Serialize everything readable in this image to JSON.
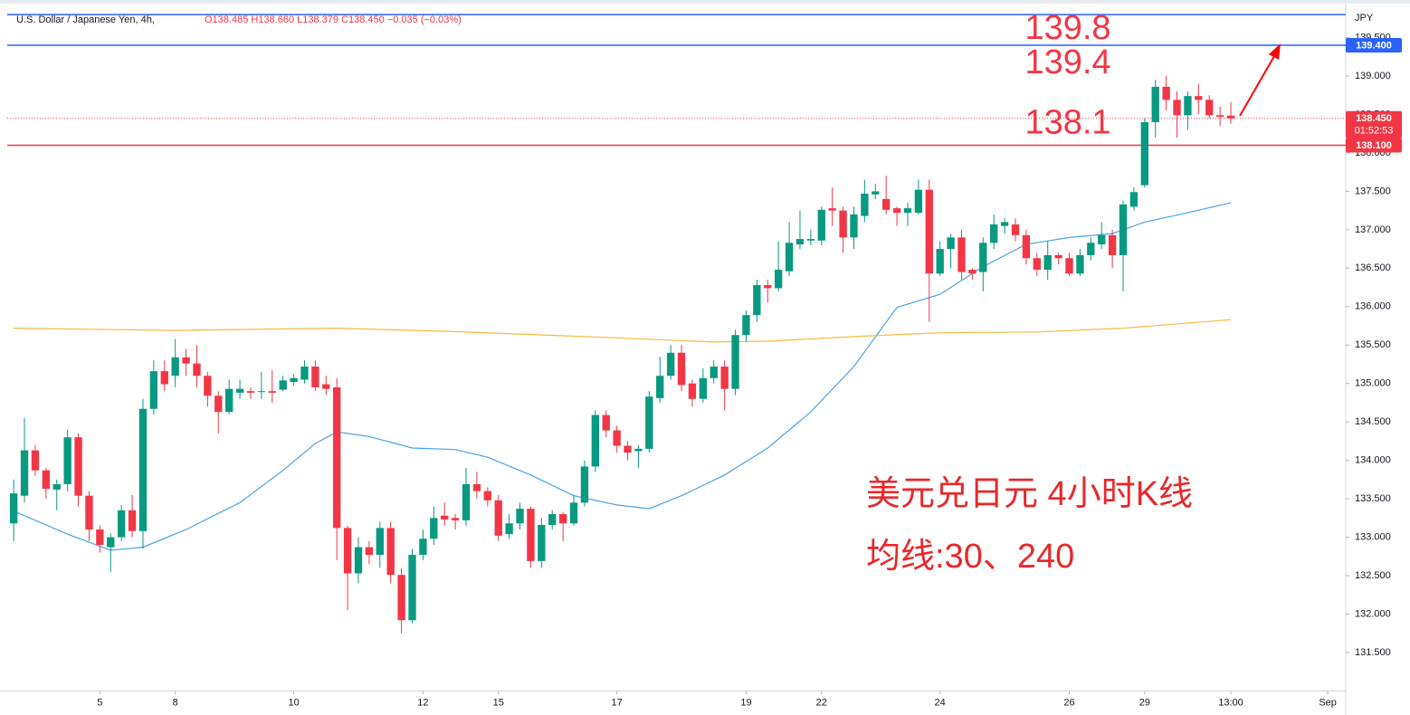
{
  "chart_data": {
    "type": "candlestick",
    "title": "U.S. Dollar / Japanese Yen, 4h,",
    "subtitle": "O138.485 H138.660 L138.379 C138.450 −0.035 (−0.03%)",
    "y_axis_label": "JPY",
    "up_color": "#089981",
    "down_color": "#f23645",
    "open": [
      133.18,
      133.54,
      134.13,
      133.87,
      133.62,
      133.69,
      134.3,
      133.54,
      133.1,
      132.87,
      133.0,
      133.35,
      133.08,
      134.67,
      135.16,
      135.1,
      135.34,
      135.26,
      135.1,
      134.84,
      134.63,
      134.88,
      134.9,
      134.89,
      134.9,
      134.92,
      135.02,
      135.05,
      135.22,
      134.99,
      134.95,
      133.12,
      132.53,
      132.87,
      132.77,
      133.12,
      132.51,
      131.92,
      132.77,
      132.98,
      133.28,
      133.25,
      133.22,
      133.69,
      133.6,
      133.48,
      133.04,
      133.18,
      133.37,
      132.69,
      133.16,
      133.3,
      133.18,
      133.45,
      133.92,
      134.59,
      134.39,
      134.19,
      134.12,
      134.15,
      134.81,
      135.1,
      135.4,
      135.0,
      134.8,
      135.07,
      135.22,
      134.93,
      135.63,
      135.89,
      136.28,
      136.24,
      136.46,
      136.81,
      136.86,
      136.86,
      137.28,
      137.25,
      136.9,
      137.18,
      137.46,
      137.4,
      137.28,
      137.22,
      137.22,
      137.52,
      136.43,
      136.75,
      136.9,
      136.48,
      136.45,
      136.83,
      137.05,
      137.07,
      136.93,
      136.63,
      136.48,
      136.67,
      136.63,
      136.43,
      136.67,
      136.81,
      136.93,
      136.67,
      137.3,
      137.58,
      138.4,
      138.86,
      138.69,
      138.49,
      138.74,
      138.69,
      138.49,
      138.485
    ],
    "high": [
      133.75,
      134.55,
      134.2,
      133.9,
      133.75,
      134.4,
      134.35,
      133.6,
      133.15,
      133.05,
      133.42,
      133.55,
      134.8,
      135.3,
      135.3,
      135.58,
      135.45,
      135.5,
      135.15,
      134.9,
      135.05,
      135.05,
      134.95,
      135.15,
      135.17,
      135.1,
      135.12,
      135.3,
      135.3,
      135.1,
      135.07,
      133.15,
      133.0,
      132.95,
      133.2,
      133.2,
      132.6,
      132.85,
      133.1,
      133.4,
      133.45,
      133.3,
      133.9,
      133.85,
      133.65,
      133.55,
      133.3,
      133.45,
      133.4,
      133.25,
      133.35,
      133.33,
      133.55,
      134.0,
      134.65,
      134.65,
      134.45,
      134.25,
      134.2,
      134.9,
      135.35,
      135.5,
      135.5,
      135.05,
      135.2,
      135.3,
      135.3,
      135.7,
      135.95,
      136.35,
      136.35,
      136.85,
      137.1,
      137.25,
      137.0,
      137.3,
      137.55,
      137.3,
      137.3,
      137.65,
      137.6,
      137.7,
      137.3,
      137.35,
      137.65,
      137.65,
      136.85,
      136.95,
      137.0,
      136.5,
      136.9,
      137.2,
      137.15,
      137.15,
      137.0,
      136.7,
      136.85,
      136.7,
      136.7,
      136.75,
      136.9,
      137.1,
      137.0,
      137.38,
      137.55,
      138.45,
      138.95,
      139.0,
      138.8,
      138.8,
      138.9,
      138.75,
      138.6,
      138.66
    ],
    "low": [
      132.95,
      133.45,
      133.8,
      133.5,
      133.35,
      133.6,
      133.4,
      132.95,
      132.8,
      132.55,
      132.95,
      133.0,
      132.85,
      134.6,
      134.9,
      134.95,
      135.1,
      134.95,
      134.7,
      134.35,
      134.6,
      134.8,
      134.8,
      134.8,
      134.75,
      134.9,
      134.97,
      135.0,
      134.9,
      134.85,
      132.7,
      132.05,
      132.4,
      132.65,
      132.6,
      132.4,
      131.75,
      131.88,
      132.7,
      132.9,
      133.15,
      133.1,
      133.15,
      133.5,
      133.4,
      132.95,
      132.98,
      133.1,
      132.6,
      132.6,
      133.1,
      132.95,
      133.15,
      133.4,
      133.85,
      134.3,
      134.1,
      134.0,
      133.9,
      134.1,
      134.75,
      135.05,
      134.9,
      134.7,
      134.75,
      135.0,
      134.65,
      134.85,
      135.55,
      135.8,
      136.05,
      136.2,
      136.4,
      136.75,
      136.8,
      136.8,
      137.05,
      136.7,
      136.75,
      137.1,
      137.4,
      137.2,
      137.05,
      137.05,
      137.2,
      135.8,
      136.4,
      136.5,
      136.35,
      136.35,
      136.2,
      136.75,
      136.95,
      136.85,
      136.55,
      136.4,
      136.35,
      136.55,
      136.4,
      136.4,
      136.6,
      136.75,
      136.5,
      136.2,
      137.25,
      137.55,
      138.2,
      138.55,
      138.2,
      138.3,
      138.5,
      138.45,
      138.35,
      138.379
    ],
    "close": [
      133.57,
      134.13,
      133.87,
      133.63,
      133.69,
      134.3,
      133.54,
      133.1,
      132.9,
      133.0,
      133.35,
      133.08,
      134.67,
      135.16,
      134.99,
      135.34,
      135.26,
      135.1,
      134.84,
      134.63,
      134.93,
      134.93,
      134.88,
      134.9,
      134.88,
      135.04,
      135.07,
      135.22,
      134.95,
      134.93,
      133.12,
      132.53,
      132.87,
      132.77,
      133.12,
      132.51,
      131.92,
      132.77,
      132.98,
      133.25,
      133.23,
      133.22,
      133.69,
      133.6,
      133.48,
      133.02,
      133.18,
      133.37,
      132.69,
      133.16,
      133.3,
      133.18,
      133.45,
      133.92,
      134.59,
      134.39,
      134.19,
      134.1,
      134.15,
      134.83,
      135.1,
      135.4,
      134.98,
      134.8,
      135.07,
      135.22,
      134.93,
      135.63,
      135.89,
      136.28,
      136.24,
      136.48,
      136.83,
      136.88,
      136.88,
      137.26,
      137.25,
      136.9,
      137.2,
      137.47,
      137.5,
      137.26,
      137.22,
      137.28,
      137.52,
      136.43,
      136.75,
      136.9,
      136.45,
      136.43,
      136.83,
      137.07,
      137.1,
      136.93,
      136.63,
      136.48,
      136.67,
      136.63,
      136.43,
      136.67,
      136.83,
      136.93,
      136.67,
      137.33,
      137.49,
      138.4,
      138.86,
      138.69,
      138.49,
      138.74,
      138.69,
      138.49,
      138.47,
      138.45
    ],
    "moving_averages": [
      {
        "color": "#4aa3e6",
        "x": [
          0,
          5,
          9,
          12,
          16,
          21,
          25,
          28,
          30,
          33,
          37,
          41,
          44,
          48,
          52,
          56,
          59,
          62,
          66,
          70,
          74,
          78,
          82,
          86,
          90,
          94,
          98,
          102,
          105,
          108,
          113
        ],
        "values": [
          133.34,
          133.04,
          132.83,
          132.87,
          133.1,
          133.45,
          133.87,
          134.22,
          134.37,
          134.31,
          134.16,
          134.14,
          134.04,
          133.81,
          133.54,
          133.42,
          133.37,
          133.54,
          133.81,
          134.16,
          134.63,
          135.22,
          135.99,
          136.16,
          136.52,
          136.81,
          136.9,
          136.95,
          137.1,
          137.19,
          137.35
        ]
      },
      {
        "color": "#f5b942",
        "x": [
          0,
          15,
          30,
          40,
          55,
          65,
          70,
          78,
          86,
          95,
          103,
          113
        ],
        "values": [
          135.72,
          135.69,
          135.72,
          135.68,
          135.6,
          135.54,
          135.55,
          135.61,
          135.66,
          135.67,
          135.72,
          135.83
        ]
      }
    ],
    "hlines": [
      {
        "value": 139.8,
        "color": "#2962ff",
        "annotation": "139.8"
      },
      {
        "value": 139.4,
        "color": "#2962ff",
        "annotation": "139.4",
        "label": "139.400"
      },
      {
        "value": 138.1,
        "color": "#f23645",
        "annotation": "138.1",
        "label": "138.100"
      }
    ],
    "last_price": {
      "value": 138.45,
      "color": "#f23645",
      "label": "138.450",
      "countdown": "01:52:53"
    },
    "annotations": [
      "美元兑日元 4小时K线",
      "均线:30、240"
    ],
    "xlim": [
      -0.6,
      123.5
    ],
    "xticks": [
      {
        "value": 8,
        "label": "5"
      },
      {
        "value": 15,
        "label": "8"
      },
      {
        "value": 26,
        "label": "10"
      },
      {
        "value": 38,
        "label": "12"
      },
      {
        "value": 45,
        "label": "15"
      },
      {
        "value": 56,
        "label": "17"
      },
      {
        "value": 68,
        "label": "19"
      },
      {
        "value": 75,
        "label": "22"
      },
      {
        "value": 86,
        "label": "24"
      },
      {
        "value": 98,
        "label": "26"
      },
      {
        "value": 105,
        "label": "29"
      },
      {
        "value": 113,
        "label": "13:00"
      },
      {
        "value": 122,
        "label": "Sep"
      }
    ],
    "ylim": [
      131.0,
      139.9
    ],
    "yticks": [
      {
        "value": 131.5,
        "label": "131.500"
      },
      {
        "value": 132,
        "label": "132.000"
      },
      {
        "value": 132.5,
        "label": "132.500"
      },
      {
        "value": 133,
        "label": "133.000"
      },
      {
        "value": 133.5,
        "label": "133.500"
      },
      {
        "value": 134,
        "label": "134.000"
      },
      {
        "value": 134.5,
        "label": "134.500"
      },
      {
        "value": 135,
        "label": "135.000"
      },
      {
        "value": 135.5,
        "label": "135.500"
      },
      {
        "value": 136,
        "label": "136.000"
      },
      {
        "value": 136.5,
        "label": "136.500"
      },
      {
        "value": 137,
        "label": "137.000"
      },
      {
        "value": 137.5,
        "label": "137.500"
      },
      {
        "value": 138,
        "label": "138.000"
      },
      {
        "value": 138.5,
        "label": "138.500"
      },
      {
        "value": 139,
        "label": "139.000"
      },
      {
        "value": 139.5,
        "label": "139.500"
      }
    ]
  }
}
